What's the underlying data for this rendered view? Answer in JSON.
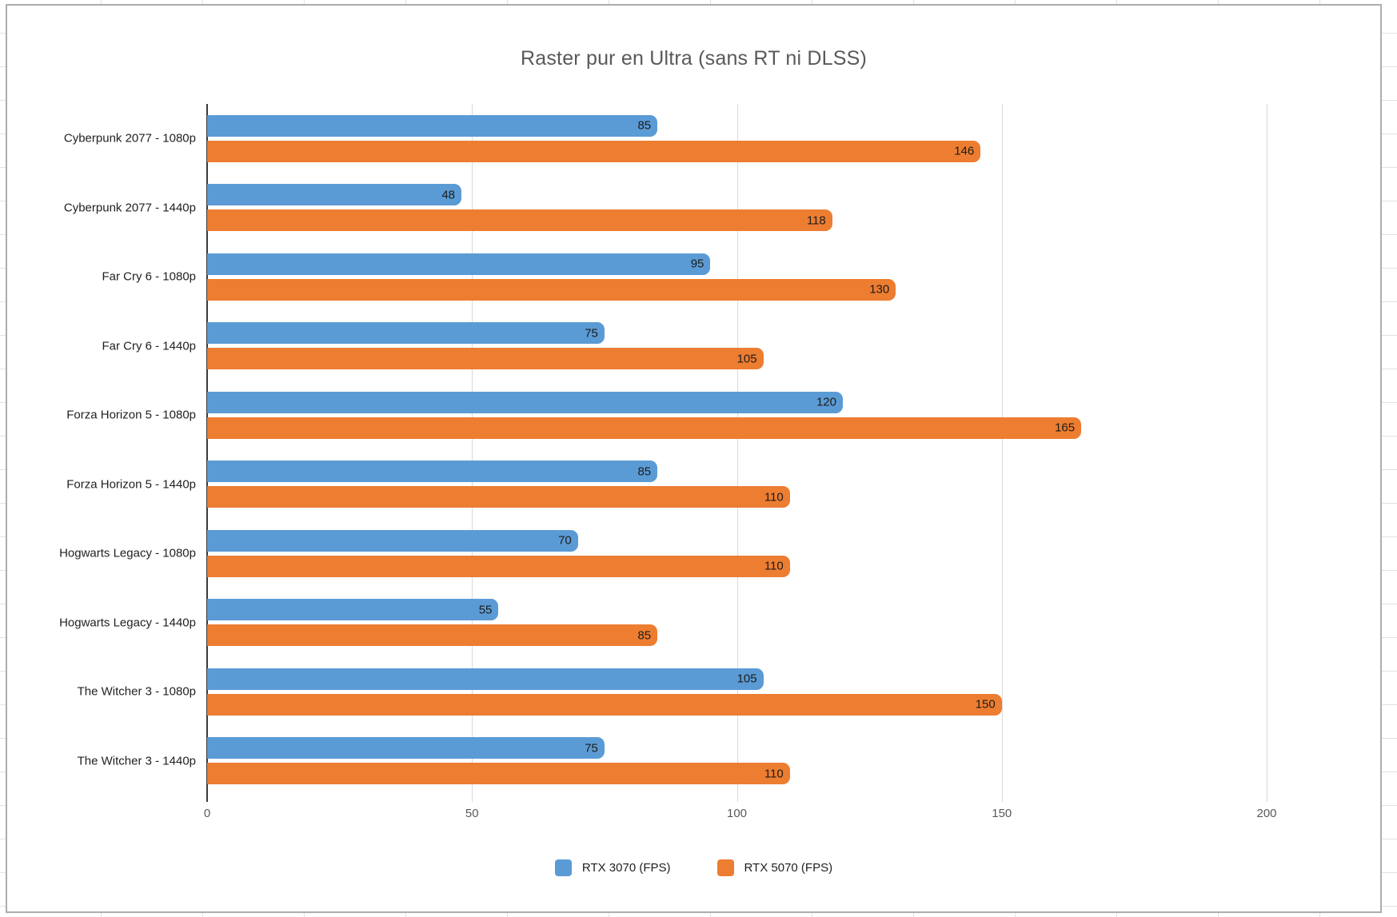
{
  "chart_data": {
    "type": "bar",
    "orientation": "horizontal",
    "title": "Raster pur en Ultra (sans RT ni DLSS)",
    "categories": [
      "Cyberpunk 2077 - 1080p",
      "Cyberpunk 2077 - 1440p",
      "Far Cry 6 - 1080p",
      "Far Cry 6 - 1440p",
      "Forza Horizon 5 - 1080p",
      "Forza Horizon 5 - 1440p",
      "Hogwarts Legacy - 1080p",
      "Hogwarts Legacy - 1440p",
      "The Witcher 3 - 1080p",
      "The Witcher 3 - 1440p"
    ],
    "series": [
      {
        "name": "RTX 3070 (FPS)",
        "color": "#5B9BD5",
        "values": [
          85,
          48,
          95,
          75,
          120,
          85,
          70,
          55,
          105,
          75
        ]
      },
      {
        "name": "RTX 5070 (FPS)",
        "color": "#ED7D31",
        "values": [
          146,
          118,
          130,
          105,
          165,
          110,
          110,
          85,
          150,
          110
        ]
      }
    ],
    "xlim": [
      0,
      200
    ],
    "x_ticks": [
      0,
      50,
      100,
      150,
      200
    ],
    "grid": "vertical-major-only",
    "legend_position": "bottom",
    "data_labels": "inside-end"
  },
  "colors": {
    "gridline": "#d9d9d9",
    "axis_line": "#3a3a3a",
    "title_text": "#595959",
    "label_text": "#1f1f1f",
    "chart_border": "#adadad",
    "sheet_gridline": "#e2e2e2"
  }
}
